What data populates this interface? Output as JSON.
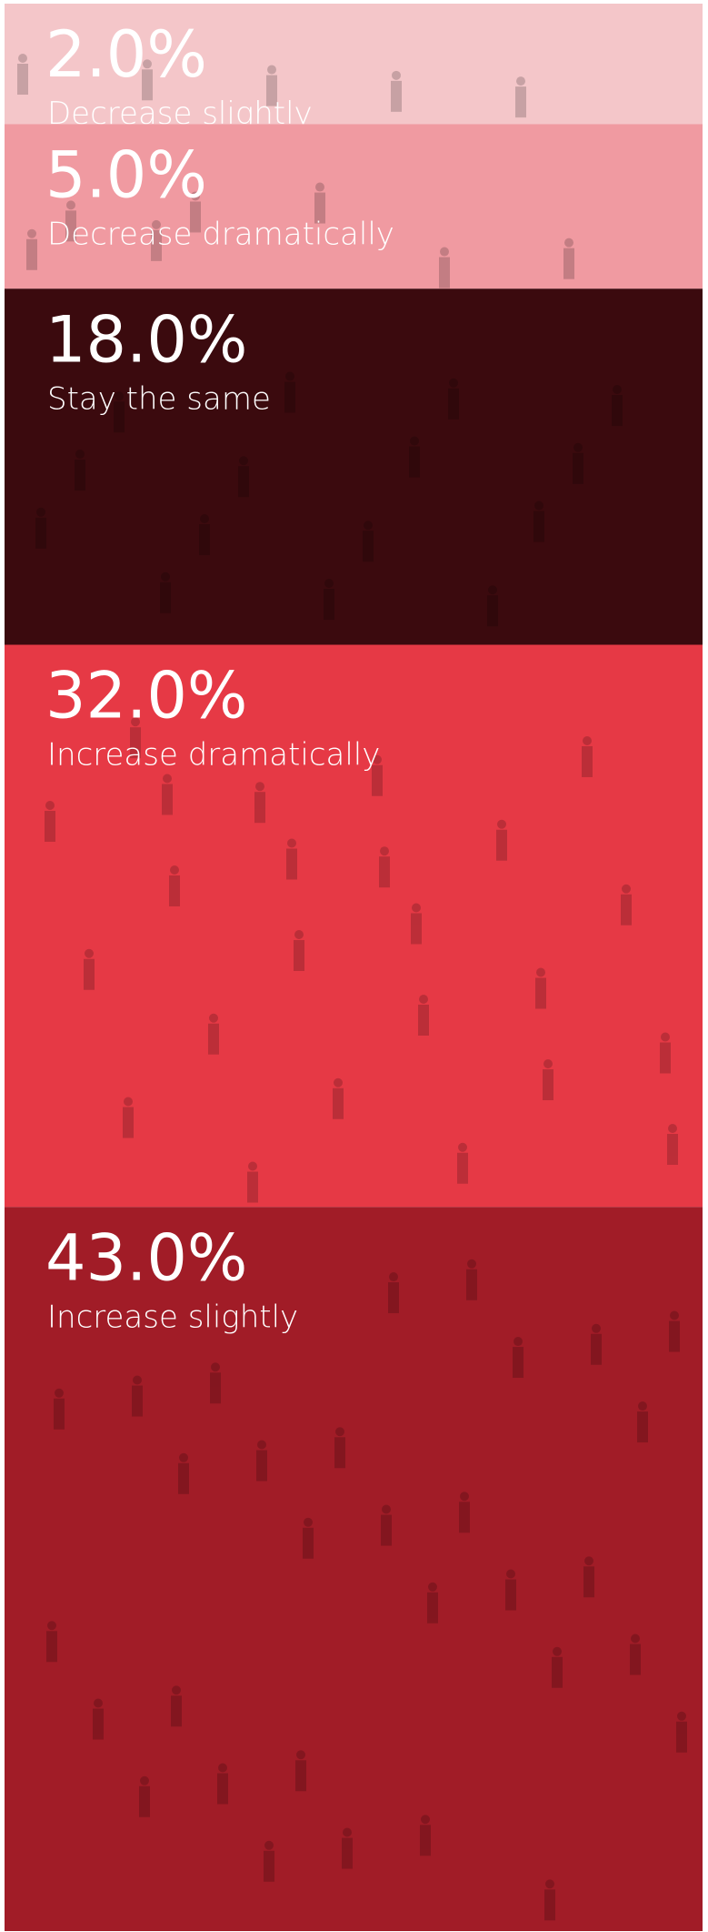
{
  "chart_data": {
    "type": "stacked-bands",
    "categories": [
      "Decrease slightly",
      "Decrease dramatically",
      "Stay the same",
      "Increase dramatically",
      "Increase slightly"
    ],
    "values": [
      2,
      5,
      18,
      32,
      43
    ],
    "value_labels": [
      "2.0%",
      "5.0%",
      "18.0%",
      "32.0%",
      "43.0%"
    ],
    "colors": [
      "#f4c6c9",
      "#f09aa1",
      "#3b0a0e",
      "#e63945",
      "#a11c27"
    ]
  }
}
